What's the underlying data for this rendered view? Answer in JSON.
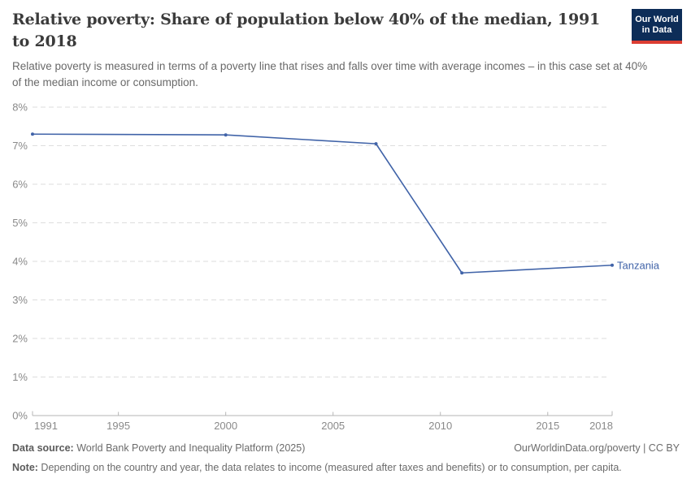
{
  "header": {
    "title": "Relative poverty: Share of population below 40% of the median, 1991 to 2018",
    "subtitle": "Relative poverty is measured in terms of a poverty line that rises and falls over time with average incomes – in this case set at 40% of the median income or consumption.",
    "logo": {
      "line1": "Our World",
      "line2": "in Data"
    }
  },
  "chart_data": {
    "type": "line",
    "title": "Relative poverty: Share of population below 40% of the median, 1991 to 2018",
    "x": [
      1991,
      2000,
      2007,
      2011,
      2018
    ],
    "series": [
      {
        "name": "Tanzania",
        "values": [
          7.3,
          7.28,
          7.05,
          3.7,
          3.9
        ],
        "color": "#4063a8"
      }
    ],
    "xlim": [
      1991,
      2018
    ],
    "ylim": [
      0,
      8
    ],
    "x_ticks": [
      1991,
      1995,
      2000,
      2005,
      2010,
      2015,
      2018
    ],
    "y_ticks": [
      0,
      1,
      2,
      3,
      4,
      5,
      6,
      7,
      8
    ],
    "y_tick_suffix": "%",
    "grid": "horizontal-dashed",
    "legend_position": "label-at-line-end"
  },
  "footer": {
    "datasource_label": "Data source:",
    "datasource_text": " World Bank Poverty and Inequality Platform (2025)",
    "link_text": "OurWorldinData.org/poverty | CC BY",
    "note_label": "Note:",
    "note_text": " Depending on the country and year, the data relates to income (measured after taxes and benefits) or to consumption, per capita."
  },
  "colors": {
    "line": "#4063a8",
    "grid": "#dddddd",
    "axis": "#b6b6b6",
    "tick_label": "#8a8a8a",
    "title": "#3b3b3b",
    "subtitle": "#696969",
    "footer": "#6b6b6b",
    "logo_bg": "#0d2d58",
    "logo_accent": "#dc3d32"
  }
}
